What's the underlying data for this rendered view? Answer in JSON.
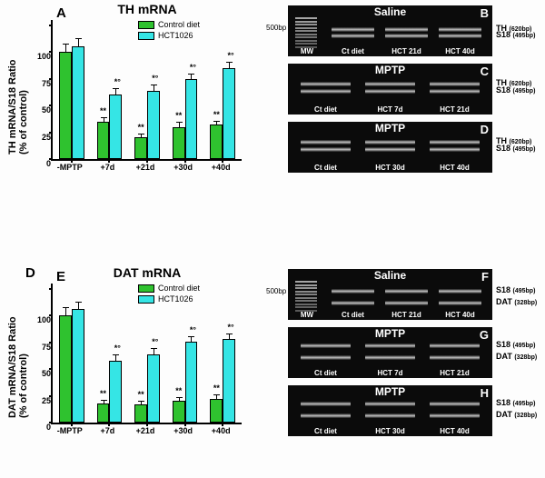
{
  "colors": {
    "control": "#2fc22f",
    "hct": "#35e5e5",
    "axis": "#000000",
    "gel_bg": "#0b0b0b",
    "band": "#ffffff"
  },
  "legend": {
    "control": "Control diet",
    "hct": "HCT1026"
  },
  "chartA": {
    "letter": "A",
    "title": "TH mRNA",
    "ylabel": "TH mRNA/S18 Ratio\n(% of control)",
    "ylim": [
      0,
      130
    ],
    "ytick_labels": [
      "0",
      "25",
      "50",
      "75",
      "100",
      ""
    ],
    "ytick_vals": [
      0,
      25,
      50,
      75,
      100,
      125
    ],
    "categories": [
      "-MPTP",
      "+7d",
      "+21d",
      "+30d",
      "+40d"
    ],
    "control_vals": [
      100,
      35,
      20,
      30,
      32
    ],
    "control_err": [
      8,
      4,
      4,
      5,
      4
    ],
    "hct_vals": [
      105,
      60,
      64,
      75,
      85
    ],
    "hct_err": [
      8,
      6,
      6,
      5,
      6
    ],
    "sig_control": [
      "",
      "**",
      "**",
      "**",
      "**"
    ],
    "sig_hct": [
      "",
      "*°",
      "*°",
      "*°",
      "*°"
    ]
  },
  "chartE": {
    "letter": "E",
    "title": "DAT mRNA",
    "ylabel": "DAT mRNA/S18 Ratio\n(% of control)",
    "ylim": [
      0,
      130
    ],
    "ytick_labels": [
      "0",
      "25",
      "50",
      "75",
      "100",
      ""
    ],
    "ytick_vals": [
      0,
      25,
      50,
      75,
      100,
      125
    ],
    "categories": [
      "-MPTP",
      "+7d",
      "+21d",
      "+30d",
      "+40d"
    ],
    "control_vals": [
      100,
      18,
      17,
      20,
      22
    ],
    "control_err": [
      8,
      3,
      3,
      4,
      4
    ],
    "hct_vals": [
      106,
      58,
      64,
      76,
      78
    ],
    "hct_err": [
      7,
      6,
      6,
      5,
      5
    ],
    "sig_control": [
      "",
      "**",
      "**",
      "**",
      "**"
    ],
    "sig_hct": [
      "",
      "*°",
      "*°",
      "*°",
      "*°"
    ]
  },
  "gel_labels": {
    "mw": "MW",
    "ct": "Ct diet",
    "bp500": "500bp"
  },
  "gel_right_labels": {
    "TH": "TH",
    "S18": "S18",
    "DAT": "DAT",
    "TH_bp": "(620bp)",
    "S18_bp": "(495bp)",
    "DAT_bp": "(328bp)"
  },
  "gels_top": [
    {
      "letter": "B",
      "title": "Saline",
      "ladder": true,
      "lanes": [
        "MW",
        "Ct diet",
        "HCT 21d",
        "HCT 40d"
      ],
      "bands_top": 0.42,
      "bands_bot": 0.55,
      "right1": "TH",
      "right1bp": "(620bp)",
      "right2": "S18",
      "right2bp": "(495bp)"
    },
    {
      "letter": "C",
      "title": "MPTP",
      "ladder": false,
      "lanes": [
        "Ct diet",
        "HCT 7d",
        "HCT 21d"
      ],
      "bands_top": 0.35,
      "bands_bot": 0.5,
      "right1": "TH",
      "right1bp": "(620bp)",
      "right2": "S18",
      "right2bp": "(495bp)"
    },
    {
      "letter": "D",
      "title": "MPTP",
      "ladder": false,
      "lanes": [
        "Ct diet",
        "HCT 30d",
        "HCT 40d"
      ],
      "bands_top": 0.35,
      "bands_bot": 0.5,
      "right1": "TH",
      "right1bp": "(620bp)",
      "right2": "S18",
      "right2bp": "(495bp)"
    }
  ],
  "gels_bot": [
    {
      "letter": "F",
      "title": "Saline",
      "ladder": true,
      "lanes": [
        "MW",
        "Ct diet",
        "HCT 21d",
        "HCT 40d"
      ],
      "bands_top": 0.4,
      "bands_bot": 0.62,
      "right1": "S18",
      "right1bp": "(495bp)",
      "right2": "DAT",
      "right2bp": "(328bp)"
    },
    {
      "letter": "G",
      "title": "MPTP",
      "ladder": false,
      "lanes": [
        "Ct diet",
        "HCT 7d",
        "HCT 21d"
      ],
      "bands_top": 0.32,
      "bands_bot": 0.56,
      "right1": "S18",
      "right1bp": "(495bp)",
      "right2": "DAT",
      "right2bp": "(328bp)"
    },
    {
      "letter": "H",
      "title": "MPTP",
      "ladder": false,
      "lanes": [
        "Ct diet",
        "HCT 30d",
        "HCT 40d"
      ],
      "bands_top": 0.32,
      "bands_bot": 0.56,
      "right1": "S18",
      "right1bp": "(495bp)",
      "right2": "DAT",
      "right2bp": "(328bp)"
    }
  ],
  "dup_letter_D": "D"
}
